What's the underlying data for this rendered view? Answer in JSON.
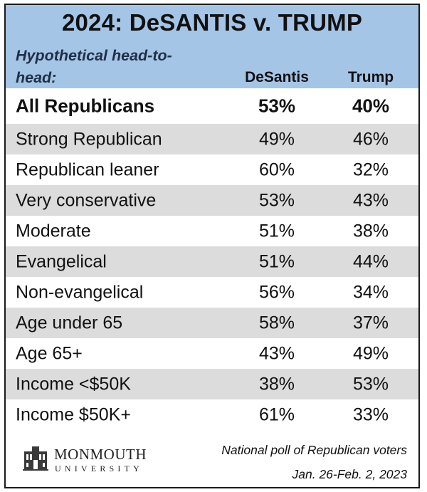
{
  "chart_data": {
    "type": "table",
    "title": "2024: DeSANTIS v. TRUMP",
    "subtitle": "Hypothetical head-to-head:",
    "columns": [
      "DeSantis",
      "Trump"
    ],
    "rows": [
      {
        "label": "All Republicans",
        "desantis": "53%",
        "trump": "40%"
      },
      {
        "label": "Strong Republican",
        "desantis": "49%",
        "trump": "46%"
      },
      {
        "label": "Republican leaner",
        "desantis": "60%",
        "trump": "32%"
      },
      {
        "label": "Very conservative",
        "desantis": "53%",
        "trump": "43%"
      },
      {
        "label": "Moderate",
        "desantis": "51%",
        "trump": "38%"
      },
      {
        "label": "Evangelical",
        "desantis": "51%",
        "trump": "44%"
      },
      {
        "label": "Non-evangelical",
        "desantis": "56%",
        "trump": "34%"
      },
      {
        "label": "Age under 65",
        "desantis": "58%",
        "trump": "37%"
      },
      {
        "label": "Age 65+",
        "desantis": "43%",
        "trump": "49%"
      },
      {
        "label": "Income <$50K",
        "desantis": "38%",
        "trump": "53%"
      },
      {
        "label": "Income $50K+",
        "desantis": "61%",
        "trump": "33%"
      }
    ]
  },
  "footer": {
    "logo_name": "MONMOUTH",
    "logo_sub": "UNIVERSITY",
    "source": "National poll of Republican voters",
    "date": "Jan. 26-Feb. 2, 2023"
  },
  "colors": {
    "header_bg": "#a5c5e7",
    "row_shade": "#dcdcdc"
  }
}
